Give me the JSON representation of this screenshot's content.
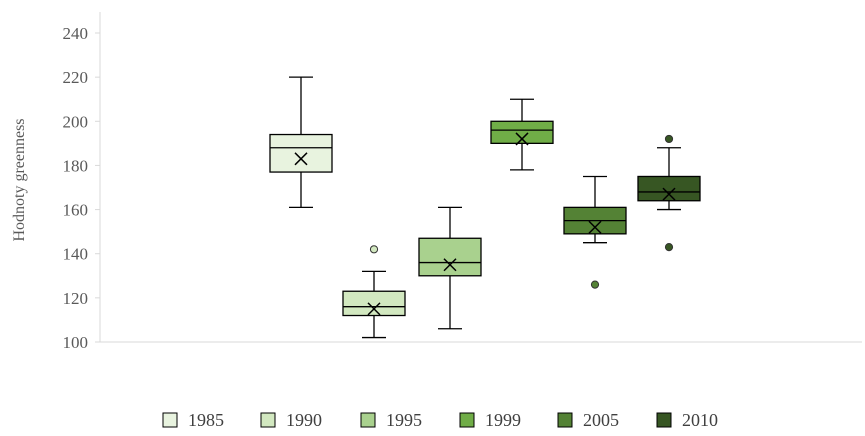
{
  "chart_data": {
    "type": "box",
    "ylabel": "Hodnoty greenness",
    "xlabel": "",
    "title": "",
    "ylim": [
      100,
      240
    ],
    "yticks": [
      100,
      120,
      140,
      160,
      180,
      200,
      220,
      240
    ],
    "grid": false,
    "legend_position": "bottom",
    "series": [
      {
        "name": "1985",
        "color": "#e8f3df",
        "min": 161,
        "q1": 177,
        "median": 188,
        "q3": 194,
        "max": 220,
        "mean": 183,
        "outliers": []
      },
      {
        "name": "1990",
        "color": "#d2e8c0",
        "min": 102,
        "q1": 112,
        "median": 116,
        "q3": 123,
        "max": 132,
        "mean": 115,
        "outliers": [
          142
        ]
      },
      {
        "name": "1995",
        "color": "#a9d18e",
        "min": 106,
        "q1": 130,
        "median": 136,
        "q3": 147,
        "max": 161,
        "mean": 135,
        "outliers": []
      },
      {
        "name": "1999",
        "color": "#70ad47",
        "min": 178,
        "q1": 190,
        "median": 196,
        "q3": 200,
        "max": 210,
        "mean": 192,
        "outliers": []
      },
      {
        "name": "2005",
        "color": "#548235",
        "min": 145,
        "q1": 149,
        "median": 155,
        "q3": 161,
        "max": 175,
        "mean": 152,
        "outliers": [
          126
        ]
      },
      {
        "name": "2010",
        "color": "#375623",
        "min": 160,
        "q1": 164,
        "median": 168,
        "q3": 175,
        "max": 188,
        "mean": 167,
        "outliers": [
          192,
          143
        ]
      }
    ]
  }
}
